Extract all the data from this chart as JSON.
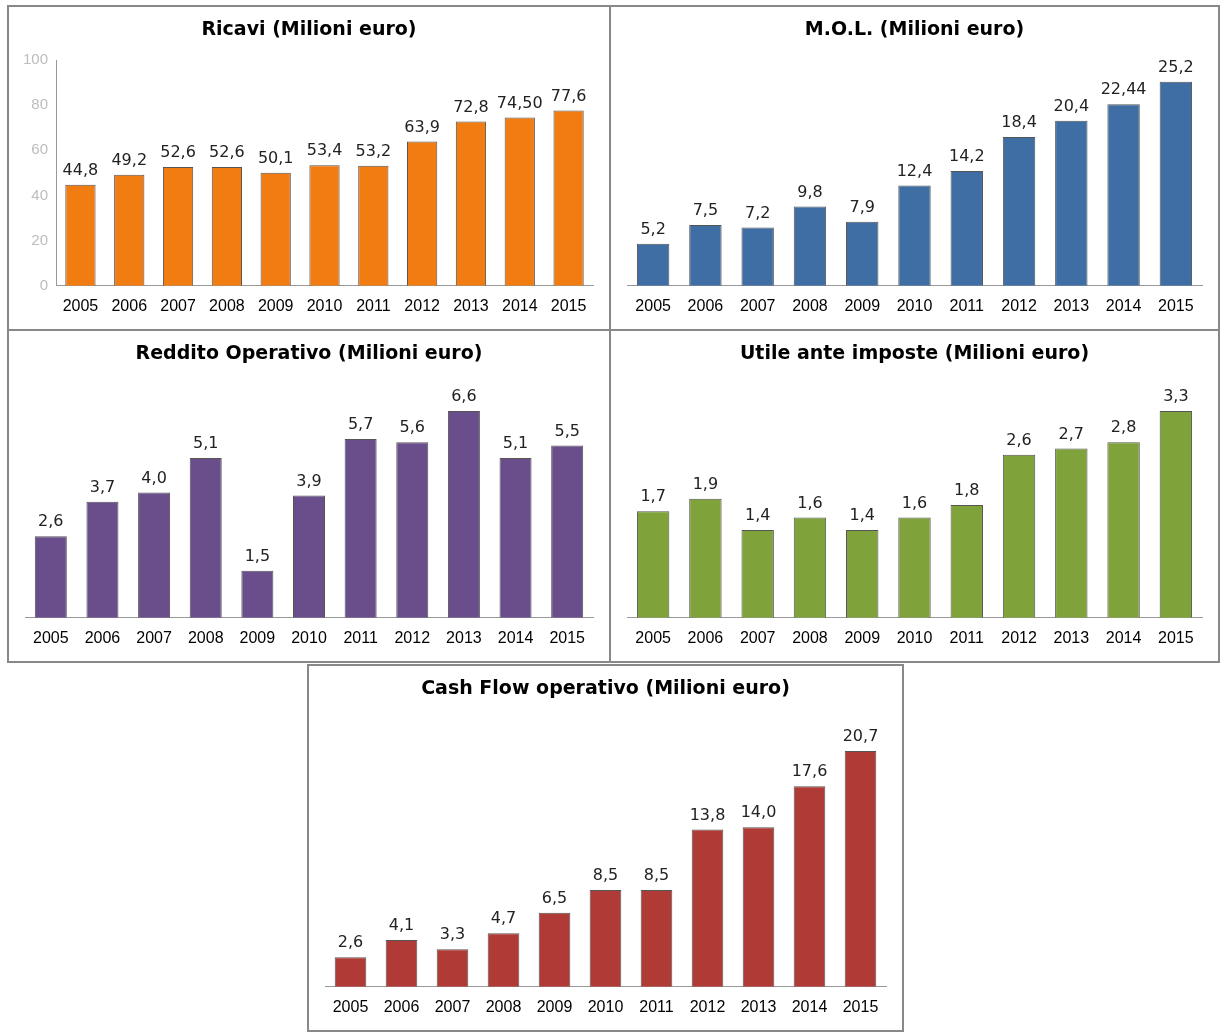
{
  "chart_data": [
    {
      "type": "bar",
      "title": "Ricavi (Milioni euro)",
      "categories": [
        "2005",
        "2006",
        "2007",
        "2008",
        "2009",
        "2010",
        "2011",
        "2012",
        "2013",
        "2014",
        "2015"
      ],
      "values": [
        44.8,
        49.2,
        52.6,
        52.6,
        50.1,
        53.4,
        53.2,
        63.9,
        72.8,
        74.5,
        77.6
      ],
      "value_labels": [
        "44,8",
        "49,2",
        "52,6",
        "52,6",
        "50,1",
        "53,4",
        "53,2",
        "63,9",
        "72,8",
        "74,50",
        "77,6"
      ],
      "color": "#f07c12",
      "ylim": [
        0,
        100
      ],
      "yticks": [
        0,
        20,
        40,
        60,
        80,
        100
      ],
      "grid": false,
      "legend": false
    },
    {
      "type": "bar",
      "title": "M.O.L. (Milioni euro)",
      "categories": [
        "2005",
        "2006",
        "2007",
        "2008",
        "2009",
        "2010",
        "2011",
        "2012",
        "2013",
        "2014",
        "2015"
      ],
      "values": [
        5.2,
        7.5,
        7.2,
        9.8,
        7.9,
        12.4,
        14.2,
        18.4,
        20.4,
        22.44,
        25.2
      ],
      "value_labels": [
        "5,2",
        "7,5",
        "7,2",
        "9,8",
        "7,9",
        "12,4",
        "14,2",
        "18,4",
        "20,4",
        "22,44",
        "25,2"
      ],
      "color": "#3f6ea5",
      "tick_labels": "x",
      "grid": false,
      "legend": false
    },
    {
      "type": "bar",
      "title": "Reddito Operativo (Milioni euro)",
      "categories": [
        "2005",
        "2006",
        "2007",
        "2008",
        "2009",
        "2010",
        "2011",
        "2012",
        "2013",
        "2014",
        "2015"
      ],
      "values": [
        2.6,
        3.7,
        4.0,
        5.1,
        1.5,
        3.9,
        5.7,
        5.6,
        6.6,
        5.1,
        5.5
      ],
      "value_labels": [
        "2,6",
        "3,7",
        "4,0",
        "5,1",
        "1,5",
        "3,9",
        "5,7",
        "5,6",
        "6,6",
        "5,1",
        "5,5"
      ],
      "color": "#6a4e8c",
      "tick_labels": "x",
      "grid": false,
      "legend": false
    },
    {
      "type": "bar",
      "title": "Utile ante imposte (Milioni euro)",
      "categories": [
        "2005",
        "2006",
        "2007",
        "2008",
        "2009",
        "2010",
        "2011",
        "2012",
        "2013",
        "2014",
        "2015"
      ],
      "values": [
        1.7,
        1.9,
        1.4,
        1.6,
        1.4,
        1.6,
        1.8,
        2.6,
        2.7,
        2.8,
        3.3
      ],
      "value_labels": [
        "1,7",
        "1,9",
        "1,4",
        "1,6",
        "1,4",
        "1,6",
        "1,8",
        "2,6",
        "2,7",
        "2,8",
        "3,3"
      ],
      "color": "#7fa23b",
      "tick_labels": "x",
      "grid": false,
      "legend": false
    },
    {
      "type": "bar",
      "title": "Cash Flow operativo (Milioni euro)",
      "categories": [
        "2005",
        "2006",
        "2007",
        "2008",
        "2009",
        "2010",
        "2011",
        "2012",
        "2013",
        "2014",
        "2015"
      ],
      "values": [
        2.6,
        4.1,
        3.3,
        4.7,
        6.5,
        8.5,
        8.5,
        13.8,
        14.0,
        17.6,
        20.7
      ],
      "value_labels": [
        "2,6",
        "4,1",
        "3,3",
        "4,7",
        "6,5",
        "8,5",
        "8,5",
        "13,8",
        "14,0",
        "17,6",
        "20,7"
      ],
      "color": "#b03a35",
      "tick_labels": "x",
      "grid": false,
      "legend": false
    }
  ]
}
